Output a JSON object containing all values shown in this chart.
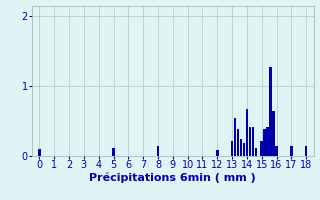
{
  "xlabel": "Précipitations 6min ( mm )",
  "background_color": "#dff5f5",
  "bar_color": "#0000aa",
  "xlim": [
    -0.5,
    18.5
  ],
  "ylim": [
    0,
    2.15
  ],
  "yticks": [
    0,
    1,
    2
  ],
  "xticks": [
    0,
    1,
    2,
    3,
    4,
    5,
    6,
    7,
    8,
    9,
    10,
    11,
    12,
    13,
    14,
    15,
    16,
    17,
    18
  ],
  "bar_positions": [
    0,
    5,
    8,
    12,
    13.0,
    13.2,
    13.4,
    13.6,
    13.8,
    14.0,
    14.2,
    14.4,
    14.6,
    15.0,
    15.2,
    15.4,
    15.6,
    15.8,
    16.0,
    17.0,
    18.0
  ],
  "bar_heights": [
    0.1,
    0.12,
    0.15,
    0.08,
    0.22,
    0.55,
    0.38,
    0.25,
    0.18,
    0.68,
    0.42,
    0.42,
    0.12,
    0.22,
    0.38,
    0.42,
    1.28,
    0.65,
    0.15,
    0.15,
    0.15
  ],
  "bar_width": 0.17,
  "grid_color": "#aaaaaa",
  "tick_color": "#0000aa",
  "label_color": "#0000aa",
  "xlabel_fontsize": 8,
  "tick_fontsize": 7
}
